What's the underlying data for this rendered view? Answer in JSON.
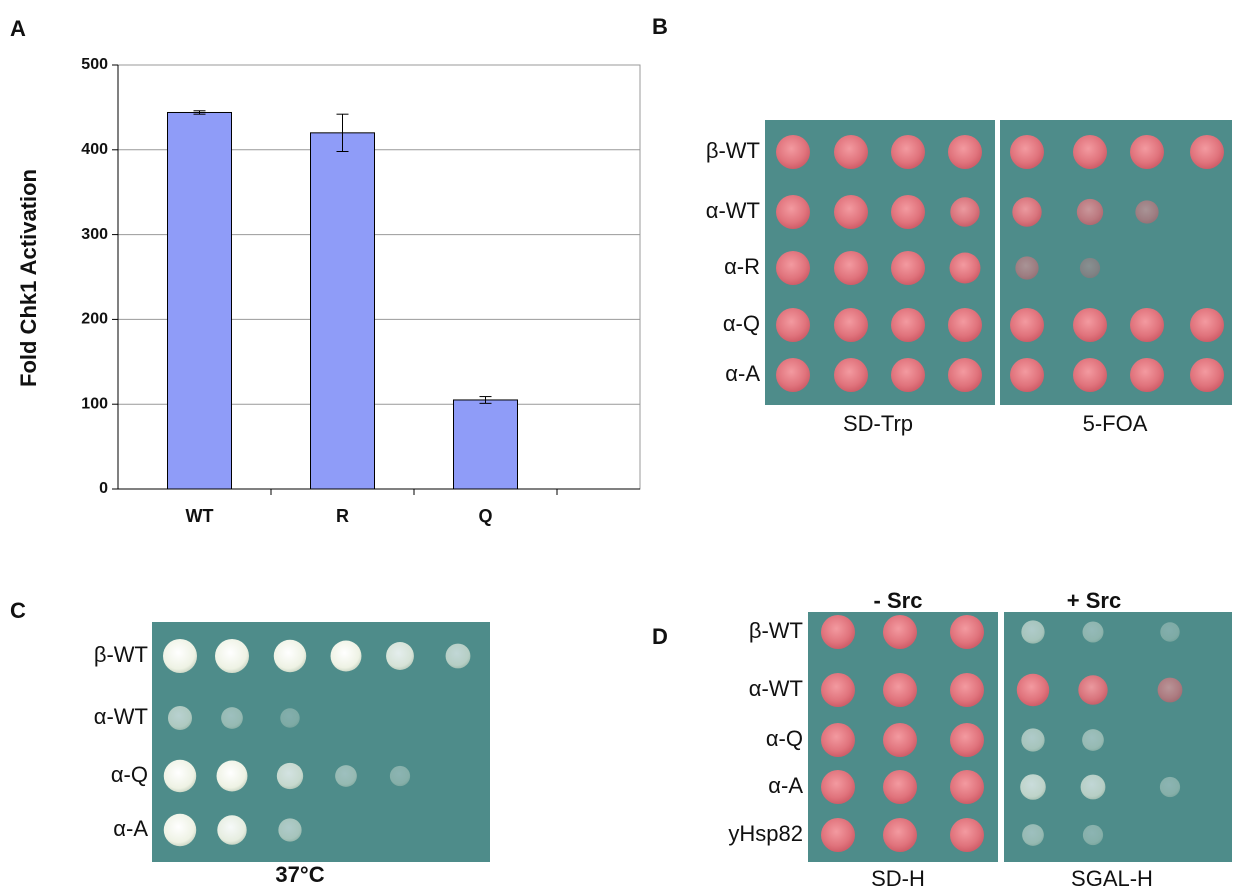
{
  "chart_data": {
    "type": "bar",
    "label": "A",
    "ylabel": "Fold Chk1 Activation",
    "categories": [
      "WT",
      "R",
      "Q"
    ],
    "values": [
      444,
      420,
      105
    ],
    "errors": [
      2,
      22,
      4
    ],
    "color": "#8f9cf8",
    "ylim": [
      0,
      500
    ],
    "yticks": [
      0,
      100,
      200,
      300,
      400,
      500
    ],
    "grid": true
  },
  "plates": [
    {
      "label": "B",
      "rows": [
        "β-WT",
        "α-WT",
        "α-R",
        "α-Q",
        "α-A"
      ],
      "media": [
        "SD-Trp",
        "5-FOA"
      ]
    },
    {
      "label": "C",
      "rows": [
        "β-WT",
        "α-WT",
        "α-Q",
        "α-A"
      ],
      "media": [
        "37°C"
      ]
    },
    {
      "label": "D",
      "rows": [
        "β-WT",
        "α-WT",
        "α-Q",
        "α-A",
        "yHsp82"
      ],
      "conditions": [
        "- Src",
        "+ Src"
      ],
      "media": [
        "SD-H",
        "SGAL-H"
      ]
    }
  ]
}
